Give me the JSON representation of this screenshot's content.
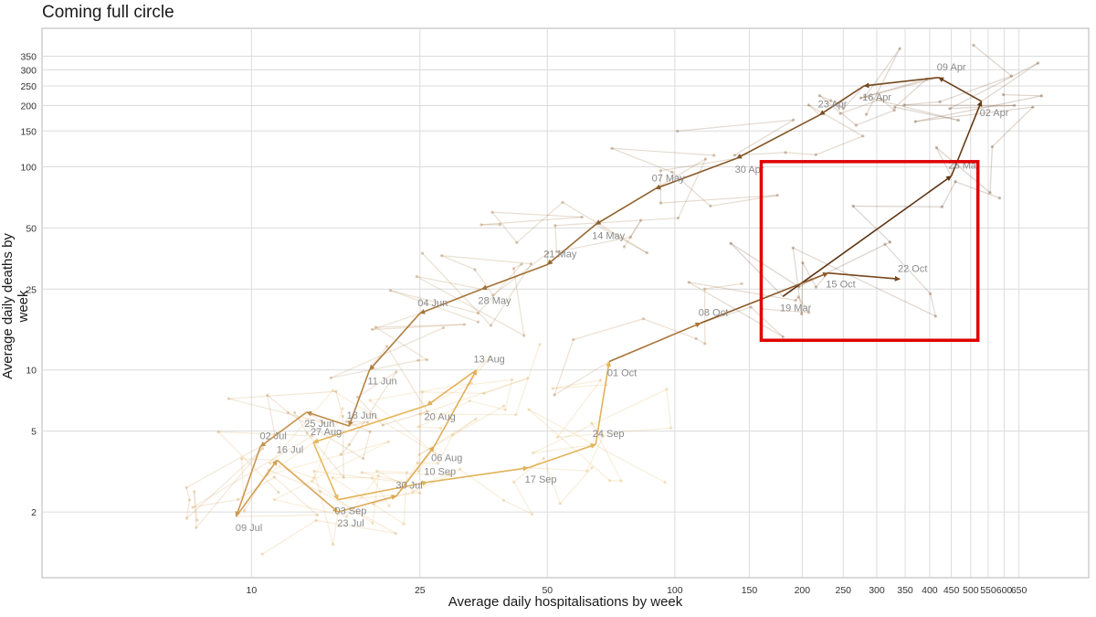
{
  "chart_data": {
    "type": "line",
    "title": "Coming full circle",
    "xlabel": "Average daily hospitalisations by week",
    "ylabel": "Average daily deaths by week",
    "x_scale": "log",
    "y_scale": "log",
    "xlim": [
      3.2,
      950
    ],
    "ylim": [
      0.95,
      480
    ],
    "x_ticks": [
      10,
      25,
      50,
      100,
      150,
      200,
      250,
      300,
      350,
      400,
      450,
      500,
      550,
      600,
      650
    ],
    "y_ticks": [
      2,
      5,
      10,
      25,
      50,
      100,
      150,
      200,
      250,
      300,
      350
    ],
    "grid": true,
    "legend": "none",
    "highlight_box": {
      "x": [
        160,
        520
      ],
      "y": [
        14,
        106
      ],
      "color": "#e00000"
    },
    "series": [
      {
        "points": [
          {
            "date": "19 Mar",
            "x": 180,
            "y": 23
          },
          {
            "date": "26 Mar",
            "x": 450,
            "y": 90
          },
          {
            "date": "02 Apr",
            "x": 530,
            "y": 210
          },
          {
            "date": "09 Apr",
            "x": 420,
            "y": 275
          },
          {
            "date": "16 Apr",
            "x": 280,
            "y": 250
          },
          {
            "date": "23 Apr",
            "x": 220,
            "y": 180
          },
          {
            "date": "30 Apr",
            "x": 140,
            "y": 110
          },
          {
            "date": "07 May",
            "x": 90,
            "y": 78
          },
          {
            "date": "14 May",
            "x": 65,
            "y": 52
          },
          {
            "date": "21 May",
            "x": 50,
            "y": 33
          },
          {
            "date": "28 May",
            "x": 35,
            "y": 25
          },
          {
            "date": "04 Jun",
            "x": 25,
            "y": 19
          },
          {
            "date": "11 Jun",
            "x": 19,
            "y": 10
          },
          {
            "date": "18 Jun",
            "x": 17,
            "y": 5.3
          },
          {
            "date": "25 Jun",
            "x": 13.5,
            "y": 6.2
          },
          {
            "date": "02 Jul",
            "x": 10.5,
            "y": 4.2
          },
          {
            "date": "09 Jul",
            "x": 9.2,
            "y": 1.9
          },
          {
            "date": "16 Jul",
            "x": 11.5,
            "y": 3.6
          },
          {
            "date": "23 Jul",
            "x": 16,
            "y": 2.0
          },
          {
            "date": "30 Jul",
            "x": 22,
            "y": 2.4
          },
          {
            "date": "06 Aug",
            "x": 27,
            "y": 4.2
          },
          {
            "date": "13 Aug",
            "x": 34,
            "y": 10
          },
          {
            "date": "20 Aug",
            "x": 26,
            "y": 6.7
          },
          {
            "date": "27 Aug",
            "x": 14,
            "y": 4.4
          },
          {
            "date": "03 Sep",
            "x": 16,
            "y": 2.3
          },
          {
            "date": "10 Sep",
            "x": 26,
            "y": 2.8
          },
          {
            "date": "17 Sep",
            "x": 45,
            "y": 3.3
          },
          {
            "date": "24 Sep",
            "x": 65,
            "y": 4.3
          },
          {
            "date": "01 Oct",
            "x": 70,
            "y": 11
          },
          {
            "date": "08 Oct",
            "x": 115,
            "y": 17
          },
          {
            "date": "15 Oct",
            "x": 230,
            "y": 30
          },
          {
            "date": "22 Oct",
            "x": 340,
            "y": 28
          }
        ]
      }
    ]
  }
}
